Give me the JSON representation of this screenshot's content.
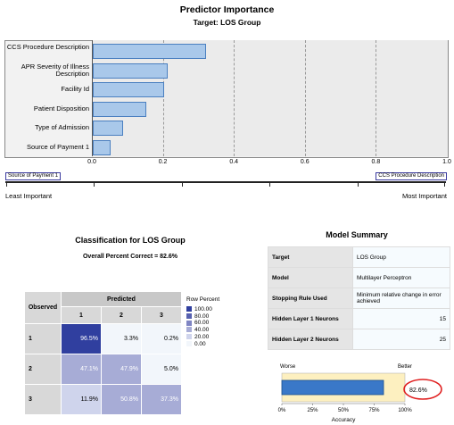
{
  "importance": {
    "title": "Predictor Importance",
    "target": "Target: LOS Group",
    "predictors": [
      {
        "label": "CCS Procedure Description",
        "value": 0.32
      },
      {
        "label": "APR Severity of Illness Description",
        "value": 0.21
      },
      {
        "label": "Facility Id",
        "value": 0.2
      },
      {
        "label": "Patient Disposition",
        "value": 0.15
      },
      {
        "label": "Type of Admission",
        "value": 0.085
      },
      {
        "label": "Source of Payment 1",
        "value": 0.05
      }
    ],
    "xticks": [
      "0.0",
      "0.2",
      "0.4",
      "0.6",
      "0.8",
      "1.0"
    ],
    "scale_left": "Source of Payment 1",
    "scale_right": "CCS Procedure Description",
    "least": "Least Important",
    "most": "Most Important",
    "bar_color": "#a9c8ea"
  },
  "classification": {
    "title": "Classification for LOS Group",
    "subtitle": "Overall Percent Correct = 82.6%",
    "predicted_label": "Predicted",
    "observed_label": "Observed",
    "cols": [
      "1",
      "2",
      "3"
    ],
    "rows": [
      {
        "label": "1",
        "cells": [
          "96.5%",
          "3.3%",
          "0.2%"
        ],
        "values": [
          96.5,
          3.3,
          0.2
        ]
      },
      {
        "label": "2",
        "cells": [
          "47.1%",
          "47.9%",
          "5.0%"
        ],
        "values": [
          47.1,
          47.9,
          5.0
        ]
      },
      {
        "label": "3",
        "cells": [
          "11.9%",
          "50.8%",
          "37.3%"
        ],
        "values": [
          11.9,
          50.8,
          37.3
        ]
      }
    ],
    "legend_title": "Row Percent",
    "legend": [
      {
        "label": "100.00",
        "color": "#303f9f"
      },
      {
        "label": "80.00",
        "color": "#5761b0"
      },
      {
        "label": "60.00",
        "color": "#7f85c3"
      },
      {
        "label": "40.00",
        "color": "#a7acd6"
      },
      {
        "label": "20.00",
        "color": "#cfd4ec"
      },
      {
        "label": "0.00",
        "color": "#f2f6fb"
      }
    ]
  },
  "summary": {
    "title": "Model Summary",
    "rows": [
      {
        "key": "Target",
        "value": "LOS Group"
      },
      {
        "key": "Model",
        "value": "Multilayer Perceptron"
      },
      {
        "key": "Stopping Rule Used",
        "value": "Minimum relative change in error achieved"
      },
      {
        "key": "Hidden Layer 1 Neurons",
        "value": "15"
      },
      {
        "key": "Hidden Layer 2 Neurons",
        "value": "25"
      }
    ],
    "worse": "Worse",
    "better": "Better",
    "accuracy_value": 82.6,
    "accuracy_text": "82.6%",
    "axis_ticks": [
      "0%",
      "25%",
      "50%",
      "75%",
      "100%"
    ],
    "axis_label": "Accuracy",
    "accent": "#3a78c8",
    "circle": "#e02020"
  }
}
